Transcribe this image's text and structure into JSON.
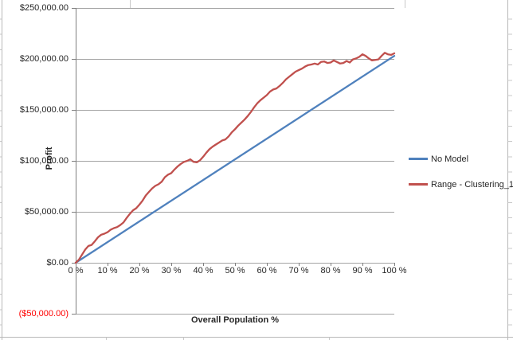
{
  "chart_data": {
    "type": "line",
    "title": "",
    "xlabel": "Overall Population %",
    "ylabel": "Profit",
    "xlim": [
      0,
      100
    ],
    "ylim": [
      -50000,
      250000
    ],
    "grid": "horizontal",
    "legend_position": "right",
    "x_tick_values": [
      0,
      10,
      20,
      30,
      40,
      50,
      60,
      70,
      80,
      90,
      100
    ],
    "x_tick_labels": [
      "0 %",
      "10 %",
      "20 %",
      "30 %",
      "40 %",
      "50 %",
      "60 %",
      "70 %",
      "80 %",
      "90 %",
      "100 %"
    ],
    "y_tick_values": [
      250000,
      200000,
      150000,
      100000,
      50000,
      0,
      -50000
    ],
    "y_tick_labels": [
      "$250,000.00",
      "$200,000.00",
      "$150,000.00",
      "$100,000.00",
      "$50,000.00",
      "$0.00",
      "($50,000.00)"
    ],
    "series": [
      {
        "name": "No Model",
        "color": "#4F81BD",
        "x": [
          0,
          100
        ],
        "y": [
          0,
          203000
        ]
      },
      {
        "name": "Range - Clustering_1",
        "color": "#C0504D",
        "x_start": 0,
        "x_step": 1,
        "y": [
          0,
          3000,
          8000,
          13000,
          16500,
          17500,
          21000,
          25000,
          27500,
          28500,
          30000,
          32500,
          34000,
          35000,
          37000,
          39500,
          44000,
          48000,
          51500,
          53500,
          57000,
          61000,
          66000,
          69500,
          73000,
          75500,
          77000,
          79500,
          84000,
          86500,
          88000,
          91500,
          94500,
          97000,
          99000,
          100000,
          101500,
          99000,
          98500,
          100500,
          104000,
          108000,
          111500,
          114000,
          116000,
          118000,
          120000,
          121000,
          124000,
          128000,
          131000,
          134500,
          137500,
          140500,
          144000,
          148000,
          152500,
          156500,
          159500,
          162000,
          164500,
          168000,
          170000,
          171000,
          173500,
          176500,
          180000,
          182500,
          185000,
          187500,
          189000,
          190500,
          192500,
          194000,
          194500,
          195500,
          194500,
          197000,
          197500,
          196000,
          196500,
          198500,
          197000,
          195500,
          196000,
          198000,
          196500,
          199500,
          200500,
          202000,
          204500,
          203000,
          200500,
          198500,
          199000,
          199500,
          203000,
          206000,
          204500,
          204000,
          205500
        ]
      }
    ]
  },
  "legend": {
    "items": [
      {
        "label": "No Model",
        "color": "#4F81BD"
      },
      {
        "label": "Range - Clustering_1",
        "color": "#C0504D"
      }
    ]
  },
  "colors": {
    "gridline": "#A3A3A3",
    "axis": "#7F7F7F",
    "negative_label": "#FF0000",
    "text": "#262626",
    "series_blue": "#4F81BD",
    "series_red": "#C0504D",
    "sheet_line": "#B8B8B8",
    "sheet_tick": "#C9C9C9"
  }
}
